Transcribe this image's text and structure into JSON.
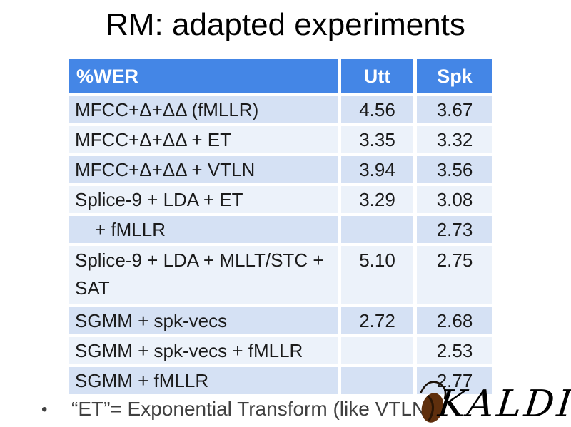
{
  "slide": {
    "title": "RM: adapted experiments",
    "footnote": {
      "bullet": "•",
      "text": "“ET”= Exponential Transform (like VTLN)"
    },
    "logo": {
      "text": "KALDI",
      "bean_color": "#5f2f0d",
      "stroke_color": "#1a1008"
    }
  },
  "table": {
    "headers": [
      "%WER",
      "Utt",
      "Spk"
    ],
    "rows": [
      {
        "label": "MFCC+Δ+ΔΔ (fMLLR)",
        "utt": "4.56",
        "spk": "3.67",
        "band": "dark",
        "indent": false,
        "tall": false
      },
      {
        "label": "MFCC+Δ+ΔΔ + ET",
        "utt": "3.35",
        "spk": "3.32",
        "band": "light",
        "indent": false,
        "tall": false
      },
      {
        "label": "MFCC+Δ+ΔΔ + VTLN",
        "utt": "3.94",
        "spk": "3.56",
        "band": "dark",
        "indent": false,
        "tall": false
      },
      {
        "label": "Splice-9 + LDA + ET",
        "utt": "3.29",
        "spk": "3.08",
        "band": "light",
        "indent": false,
        "tall": false
      },
      {
        "label": "+ fMLLR",
        "utt": "",
        "spk": "2.73",
        "band": "dark",
        "indent": true,
        "tall": false
      },
      {
        "label": "Splice-9 + LDA + MLLT/STC + SAT",
        "utt": "5.10",
        "spk": "2.75",
        "band": "light",
        "indent": false,
        "tall": true
      },
      {
        "label": "SGMM + spk-vecs",
        "utt": "2.72",
        "spk": "2.68",
        "band": "dark",
        "indent": false,
        "tall": false
      },
      {
        "label": "SGMM + spk-vecs + fMLLR",
        "utt": "",
        "spk": "2.53",
        "band": "light",
        "indent": false,
        "tall": false
      },
      {
        "label": "SGMM + fMLLR",
        "utt": "",
        "spk": "2.77",
        "band": "dark",
        "indent": false,
        "tall": false
      }
    ]
  },
  "colors": {
    "header_bg": "#4486e6",
    "header_text": "#ffffff",
    "row_dark": "#d5e1f4",
    "row_light": "#ecf2fa",
    "body_text": "#1b1b1b",
    "footnote_text": "#404040"
  }
}
